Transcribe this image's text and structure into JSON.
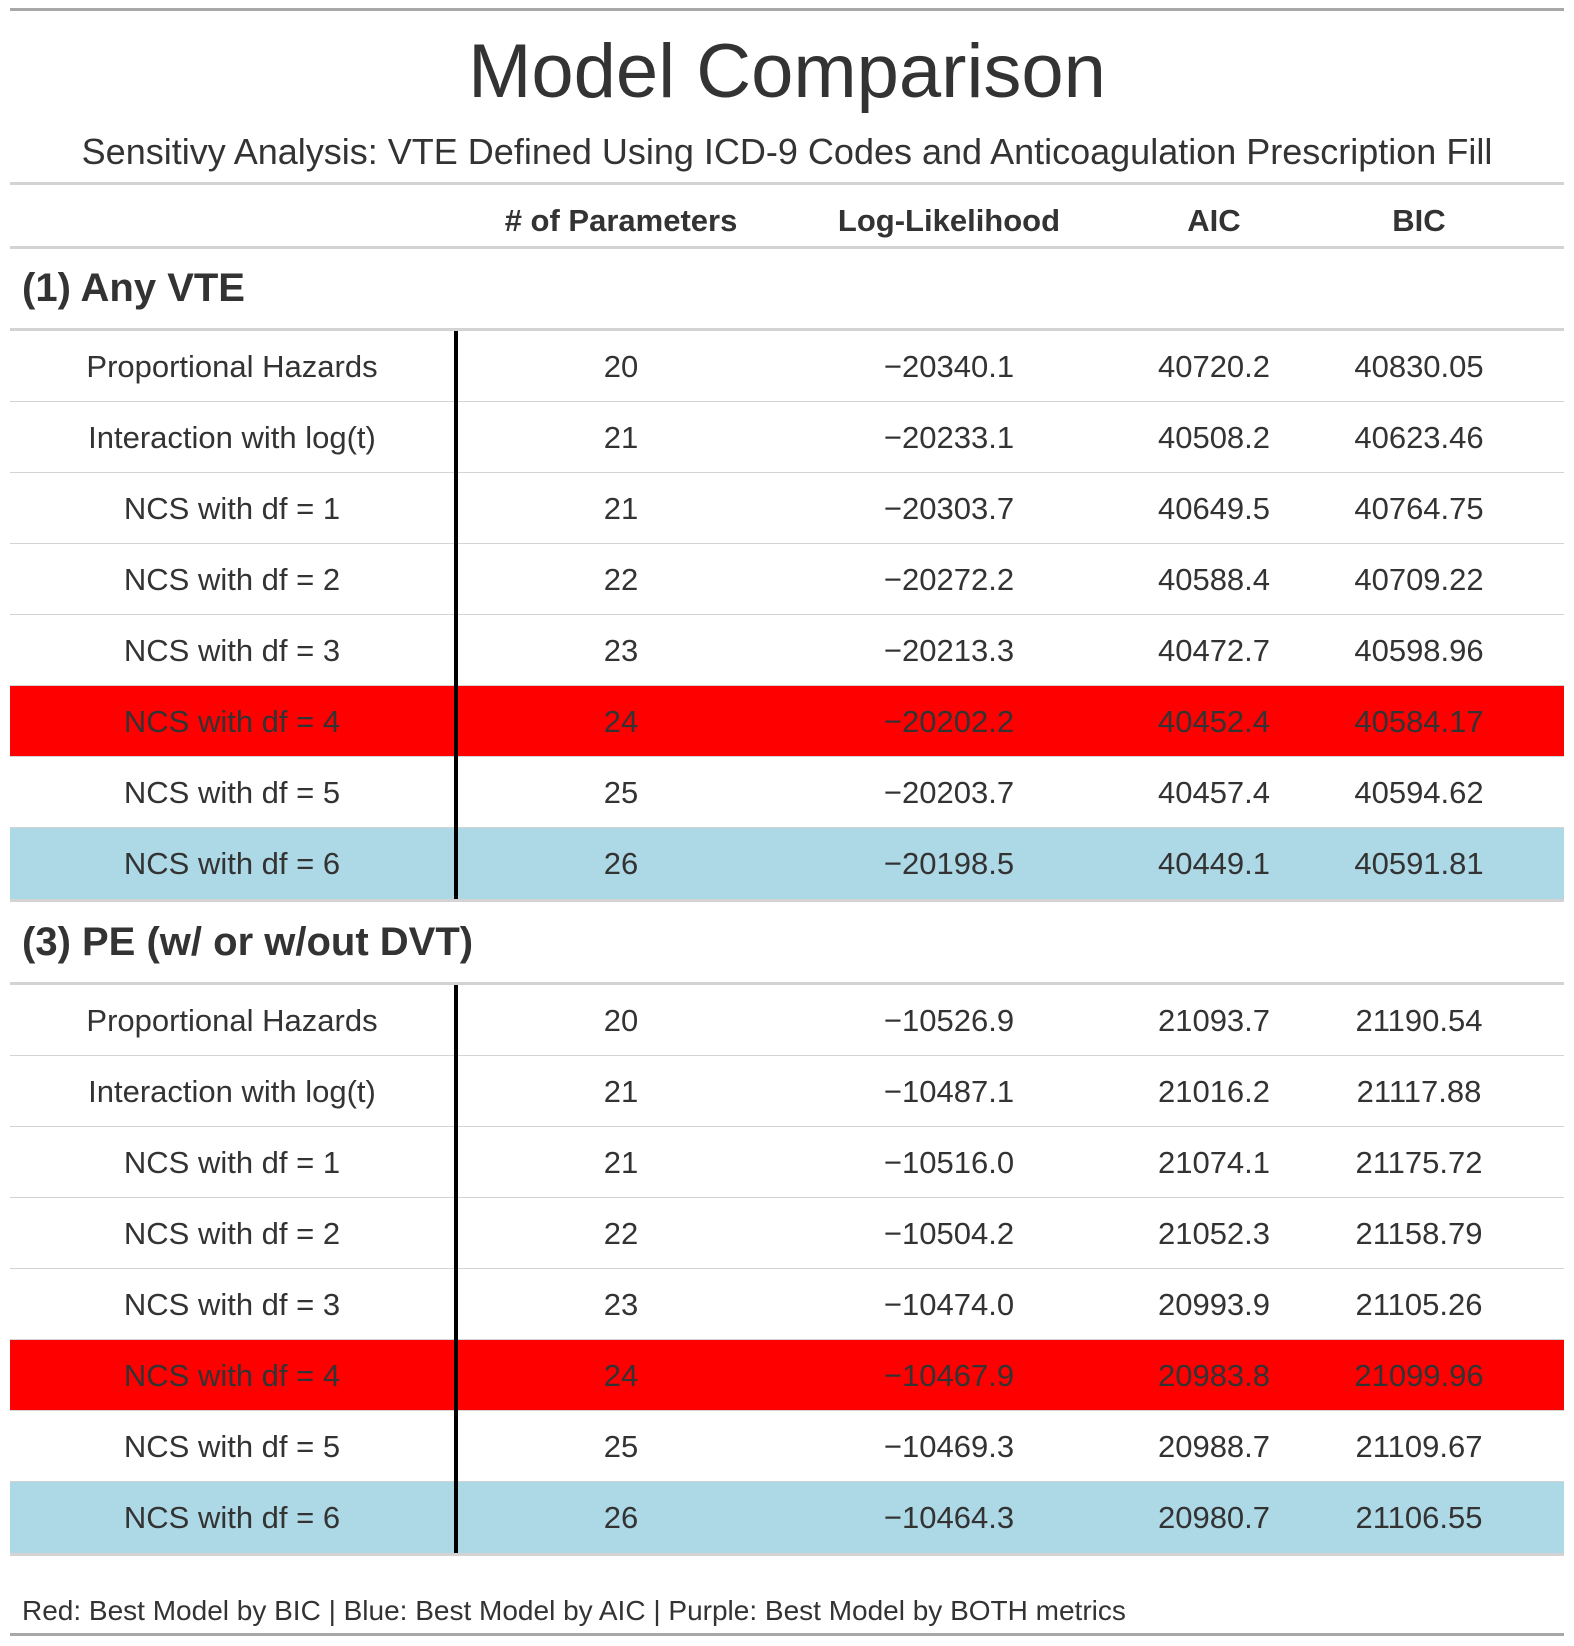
{
  "title": "Model Comparison",
  "subtitle": "Sensitivy Analysis: VTE Defined Using ICD-9 Codes and Anticoagulation Prescription Fill",
  "columns": [
    "",
    "# of Parameters",
    "Log-Likelihood",
    "AIC",
    "BIC"
  ],
  "colors": {
    "best_bic": "#ff0000",
    "best_aic": "#add8e6"
  },
  "groups": [
    {
      "label": "(1) Any VTE",
      "rows": [
        {
          "model": "Proportional Hazards",
          "params": "20",
          "loglik": "−20340.1",
          "aic": "40720.2",
          "bic": "40830.05",
          "highlight": "none"
        },
        {
          "model": "Interaction with log(t)",
          "params": "21",
          "loglik": "−20233.1",
          "aic": "40508.2",
          "bic": "40623.46",
          "highlight": "none"
        },
        {
          "model": "NCS with df = 1",
          "params": "21",
          "loglik": "−20303.7",
          "aic": "40649.5",
          "bic": "40764.75",
          "highlight": "none"
        },
        {
          "model": "NCS with df = 2",
          "params": "22",
          "loglik": "−20272.2",
          "aic": "40588.4",
          "bic": "40709.22",
          "highlight": "none"
        },
        {
          "model": "NCS with df = 3",
          "params": "23",
          "loglik": "−20213.3",
          "aic": "40472.7",
          "bic": "40598.96",
          "highlight": "none"
        },
        {
          "model": "NCS with df = 4",
          "params": "24",
          "loglik": "−20202.2",
          "aic": "40452.4",
          "bic": "40584.17",
          "highlight": "best_bic"
        },
        {
          "model": "NCS with df = 5",
          "params": "25",
          "loglik": "−20203.7",
          "aic": "40457.4",
          "bic": "40594.62",
          "highlight": "none"
        },
        {
          "model": "NCS with df = 6",
          "params": "26",
          "loglik": "−20198.5",
          "aic": "40449.1",
          "bic": "40591.81",
          "highlight": "best_aic"
        }
      ]
    },
    {
      "label": "(3) PE (w/ or w/out DVT)",
      "rows": [
        {
          "model": "Proportional Hazards",
          "params": "20",
          "loglik": "−10526.9",
          "aic": "21093.7",
          "bic": "21190.54",
          "highlight": "none"
        },
        {
          "model": "Interaction with log(t)",
          "params": "21",
          "loglik": "−10487.1",
          "aic": "21016.2",
          "bic": "21117.88",
          "highlight": "none"
        },
        {
          "model": "NCS with df = 1",
          "params": "21",
          "loglik": "−10516.0",
          "aic": "21074.1",
          "bic": "21175.72",
          "highlight": "none"
        },
        {
          "model": "NCS with df = 2",
          "params": "22",
          "loglik": "−10504.2",
          "aic": "21052.3",
          "bic": "21158.79",
          "highlight": "none"
        },
        {
          "model": "NCS with df = 3",
          "params": "23",
          "loglik": "−10474.0",
          "aic": "20993.9",
          "bic": "21105.26",
          "highlight": "none"
        },
        {
          "model": "NCS with df = 4",
          "params": "24",
          "loglik": "−10467.9",
          "aic": "20983.8",
          "bic": "21099.96",
          "highlight": "best_bic"
        },
        {
          "model": "NCS with df = 5",
          "params": "25",
          "loglik": "−10469.3",
          "aic": "20988.7",
          "bic": "21109.67",
          "highlight": "none"
        },
        {
          "model": "NCS with df = 6",
          "params": "26",
          "loglik": "−10464.3",
          "aic": "20980.7",
          "bic": "21106.55",
          "highlight": "best_aic"
        }
      ]
    }
  ],
  "footnote": "Red: Best Model by BIC | Blue: Best Model by AIC | Purple: Best Model by BOTH metrics"
}
